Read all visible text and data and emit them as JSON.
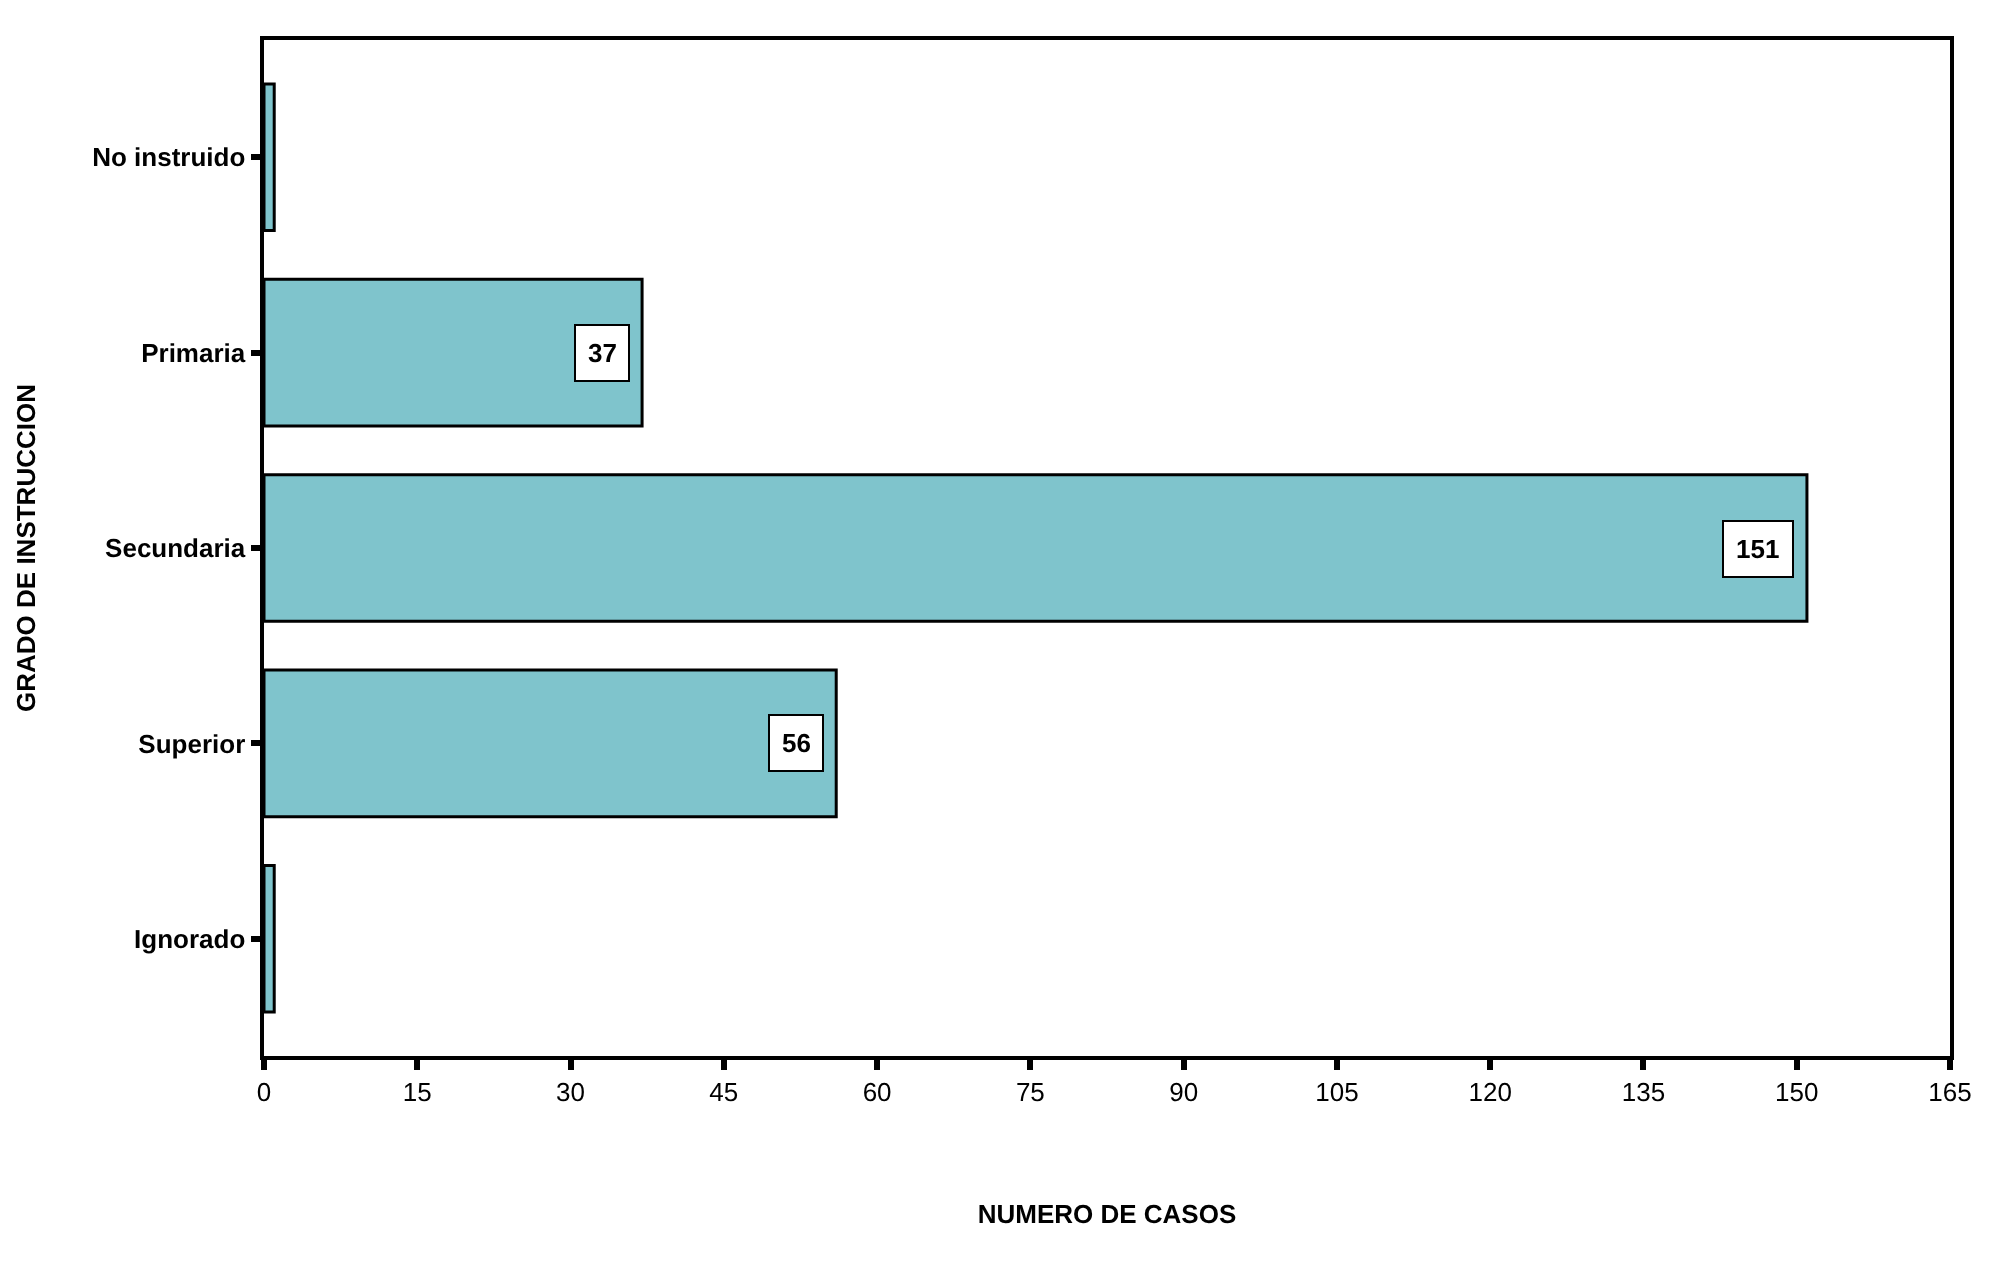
{
  "chart_data": {
    "type": "bar",
    "orientation": "horizontal",
    "categories": [
      "No instruido",
      "Primaria",
      "Secundaria",
      "Superior",
      "Ignorado"
    ],
    "values": [
      1,
      37,
      151,
      56,
      1
    ],
    "value_labels": [
      null,
      "37",
      "151",
      "56",
      null
    ],
    "color": "#7fc4cc",
    "xlim": [
      0,
      165
    ],
    "xticks": [
      0,
      15,
      30,
      45,
      60,
      75,
      90,
      105,
      120,
      135,
      150,
      165
    ],
    "xlabel": "NUMERO DE CASOS",
    "ylabel": "GRADO DE INSTRUCCION",
    "legend": false
  }
}
